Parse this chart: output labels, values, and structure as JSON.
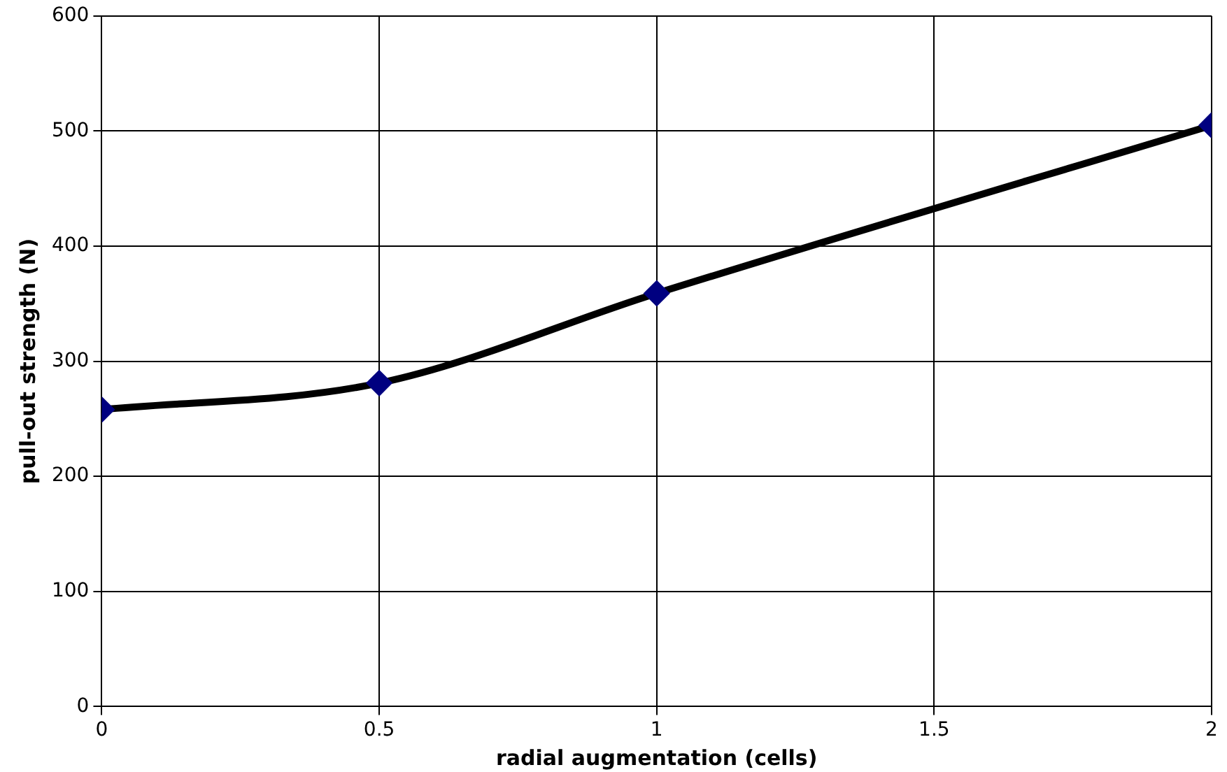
{
  "chart_data": {
    "type": "line",
    "xlabel": "radial augmentation (cells)",
    "ylabel": "pull-out strength (N)",
    "x": [
      0,
      0.5,
      1,
      2
    ],
    "series": [
      {
        "color": "#000000",
        "colors": [
          "#000080",
          "#000080",
          "#000080",
          "#000080"
        ],
        "values": [
          258,
          281,
          359,
          505
        ]
      }
    ],
    "xlim": [
      0,
      2
    ],
    "xticks": [
      0,
      0.5,
      1,
      1.5,
      2
    ],
    "ylim": [
      0,
      600
    ],
    "yticks": [
      0,
      100,
      200,
      300,
      400,
      500,
      600
    ],
    "grid": true,
    "legend": false,
    "marker": "diamond",
    "line_style": "solid"
  }
}
